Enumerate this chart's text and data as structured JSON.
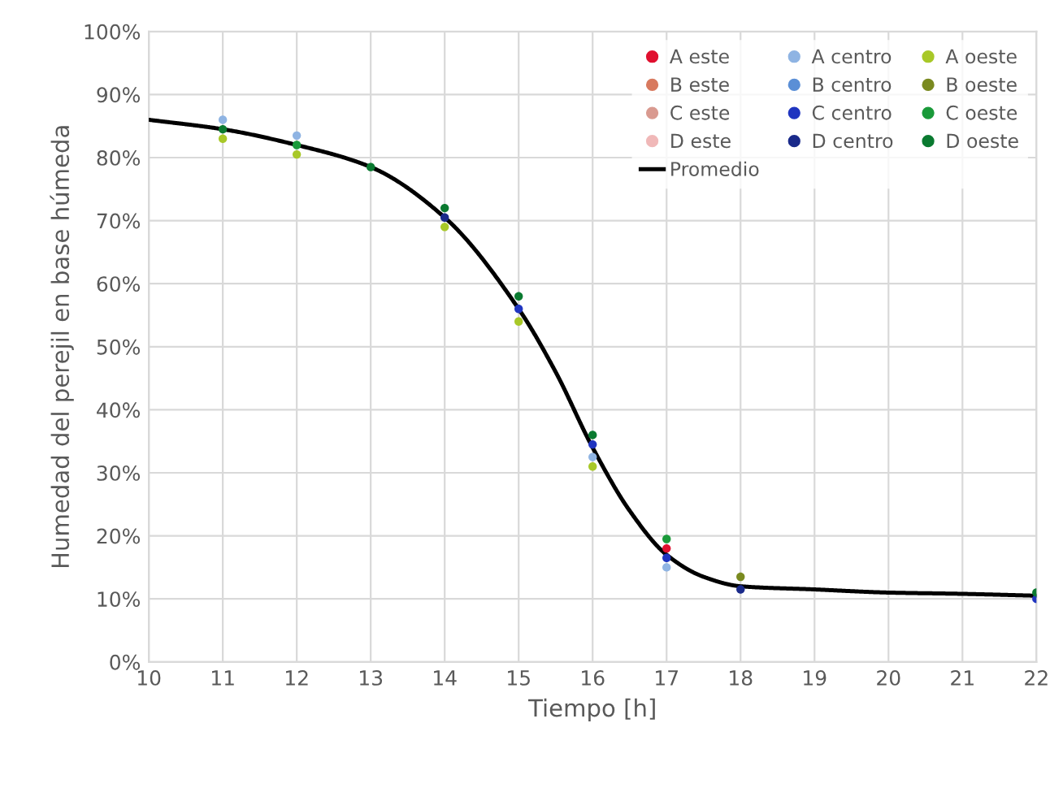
{
  "chart_data": {
    "type": "scatter",
    "xlabel": "Tiempo [h]",
    "ylabel": "Humedad del perejil en base húmeda",
    "x": [
      11,
      12,
      13,
      14,
      15,
      16,
      17,
      18,
      22
    ],
    "series": [
      {
        "name": "A este",
        "color": "#e0102f",
        "values": [
          null,
          null,
          null,
          null,
          null,
          null,
          18,
          null,
          null
        ]
      },
      {
        "name": "B este",
        "color": "#d87a5f",
        "values": [
          null,
          null,
          null,
          null,
          null,
          null,
          null,
          null,
          null
        ]
      },
      {
        "name": "C este",
        "color": "#d99a90",
        "values": [
          null,
          null,
          null,
          null,
          null,
          null,
          null,
          null,
          null
        ]
      },
      {
        "name": "D este",
        "color": "#f0b8b8",
        "values": [
          null,
          null,
          null,
          null,
          null,
          null,
          null,
          null,
          null
        ]
      },
      {
        "name": "Promedio",
        "type": "line",
        "marker": "none",
        "color": "#000000",
        "x": [
          10,
          11,
          12,
          13,
          14,
          15,
          15.5,
          16,
          16.5,
          17,
          17.5,
          18,
          19,
          20,
          21,
          22
        ],
        "values": [
          86,
          84.5,
          82,
          78.5,
          70.5,
          56,
          46,
          34,
          24,
          17,
          13.5,
          12,
          11.5,
          11,
          10.8,
          10.5
        ]
      },
      {
        "name": "A centro",
        "color": "#8fb4e3",
        "values": [
          86,
          83.5,
          null,
          null,
          null,
          32.5,
          15,
          null,
          null
        ]
      },
      {
        "name": "B centro",
        "color": "#5b8fd6",
        "values": [
          null,
          null,
          null,
          null,
          null,
          null,
          null,
          null,
          null
        ]
      },
      {
        "name": "C centro",
        "color": "#2035c0",
        "values": [
          null,
          null,
          null,
          null,
          56,
          34.5,
          16.5,
          null,
          10
        ]
      },
      {
        "name": "D centro",
        "color": "#1a2a8a",
        "values": [
          null,
          null,
          null,
          70.5,
          null,
          null,
          null,
          11.5,
          null
        ]
      },
      {
        "name": "A oeste",
        "color": "#a8c828",
        "values": [
          83,
          80.5,
          null,
          69,
          54,
          31,
          null,
          null,
          null
        ]
      },
      {
        "name": "B oeste",
        "color": "#7a8a20",
        "values": [
          null,
          null,
          null,
          null,
          null,
          null,
          null,
          13.5,
          null
        ]
      },
      {
        "name": "C oeste",
        "color": "#1a9a3a",
        "values": [
          null,
          82,
          null,
          null,
          null,
          null,
          19.5,
          null,
          null
        ]
      },
      {
        "name": "D oeste",
        "color": "#0a7a30",
        "values": [
          84.5,
          null,
          78.5,
          72,
          58,
          36,
          null,
          null,
          11
        ]
      }
    ],
    "xlim": [
      10,
      22
    ],
    "xticks": [
      10,
      11,
      12,
      13,
      14,
      15,
      16,
      17,
      18,
      19,
      20,
      21,
      22
    ],
    "ylim": [
      0,
      100
    ],
    "yticks": [
      {
        "value": 0,
        "label": "0%"
      },
      {
        "value": 10,
        "label": "10%"
      },
      {
        "value": 20,
        "label": "20%"
      },
      {
        "value": 30,
        "label": "30%"
      },
      {
        "value": 40,
        "label": "40%"
      },
      {
        "value": 50,
        "label": "50%"
      },
      {
        "value": 60,
        "label": "60%"
      },
      {
        "value": 70,
        "label": "70%"
      },
      {
        "value": 80,
        "label": "80%"
      },
      {
        "value": 90,
        "label": "90%"
      },
      {
        "value": 100,
        "label": "100%"
      }
    ],
    "grid": true,
    "legend": "top right",
    "marker": "circle"
  }
}
